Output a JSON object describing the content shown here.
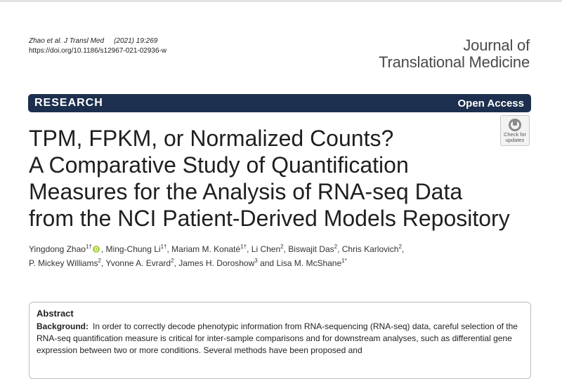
{
  "citation": {
    "journal_abbrev": "Zhao et al. J Transl Med",
    "year_vol": "(2021) 19:269",
    "doi": "https://doi.org/10.1186/s12967-021-02936-w"
  },
  "journal": {
    "line1": "Journal of",
    "line2": "Translational Medicine"
  },
  "banner": {
    "section": "RESEARCH",
    "access": "Open Access",
    "bg_color": "#1c2f4e"
  },
  "check_updates": {
    "line1": "Check for",
    "line2": "updates"
  },
  "title": {
    "line1": "TPM, FPKM, or Normalized Counts?",
    "line2": "A Comparative Study of Quantification",
    "line3": "Measures for the Analysis of RNA-seq Data",
    "line4": "from the NCI Patient-Derived Models Repository"
  },
  "authors": [
    {
      "name": "Yingdong Zhao",
      "sup": "1†",
      "orcid": true
    },
    {
      "name": "Ming-Chung Li",
      "sup": "1†"
    },
    {
      "name": "Mariam M. Konaté",
      "sup": "1†"
    },
    {
      "name": "Li Chen",
      "sup": "2"
    },
    {
      "name": "Biswajit Das",
      "sup": "2"
    },
    {
      "name": "Chris Karlovich",
      "sup": "2"
    },
    {
      "name": "P. Mickey Williams",
      "sup": "2"
    },
    {
      "name": "Yvonne A. Evrard",
      "sup": "2"
    },
    {
      "name": "James H. Doroshow",
      "sup": "3"
    },
    {
      "name": "Lisa M. McShane",
      "sup": "1*"
    }
  ],
  "author_separators": {
    "comma": ", ",
    "and": " and "
  },
  "abstract": {
    "heading": "Abstract",
    "background_label": "Background:",
    "background_text": "In order to correctly decode phenotypic information from RNA-sequencing (RNA-seq) data, careful selection of the RNA-seq quantification measure is critical for inter-sample comparisons and for downstream analyses, such as differential gene expression between two or more conditions. Several methods have been proposed and"
  }
}
